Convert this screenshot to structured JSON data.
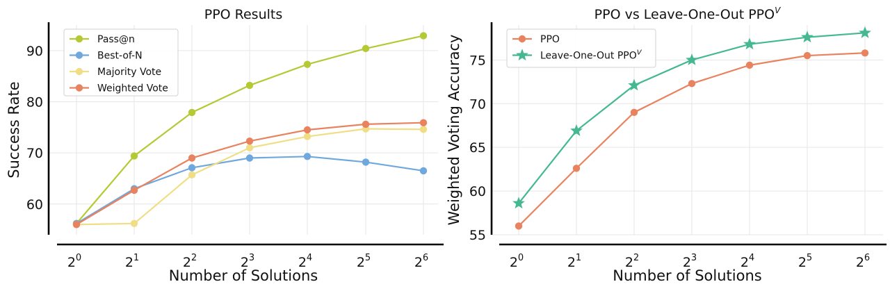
{
  "chart_data": [
    {
      "type": "line",
      "title": "PPO Results",
      "xlabel": "Number of Solutions",
      "ylabel": "Success Rate",
      "categories": [
        {
          "base": "2",
          "exp": "0"
        },
        {
          "base": "2",
          "exp": "1"
        },
        {
          "base": "2",
          "exp": "2"
        },
        {
          "base": "2",
          "exp": "3"
        },
        {
          "base": "2",
          "exp": "4"
        },
        {
          "base": "2",
          "exp": "5"
        },
        {
          "base": "2",
          "exp": "6"
        }
      ],
      "ylim": [
        54,
        95
      ],
      "yticks": [
        60,
        70,
        80,
        90
      ],
      "grid": true,
      "legend": "top-left",
      "series": [
        {
          "name": "Pass@n",
          "color": "#b5c935",
          "marker": "circle",
          "values": [
            56.2,
            69.4,
            77.9,
            83.2,
            87.3,
            90.4,
            92.9
          ]
        },
        {
          "name": "Best-of-N",
          "color": "#6fa8dc",
          "marker": "circle",
          "values": [
            56.2,
            63.0,
            67.1,
            69.0,
            69.3,
            68.2,
            66.5
          ]
        },
        {
          "name": "Majority Vote",
          "color": "#f0de87",
          "marker": "circle",
          "values": [
            56.0,
            56.2,
            65.7,
            71.0,
            73.2,
            74.7,
            74.6
          ]
        },
        {
          "name": "Weighted Vote",
          "color": "#e8825f",
          "marker": "circle",
          "values": [
            56.0,
            62.7,
            69.0,
            72.3,
            74.5,
            75.6,
            75.9
          ]
        }
      ]
    },
    {
      "type": "line",
      "title": "PPO vs Leave-One-Out PPO",
      "title_sup": "V",
      "xlabel": "Number of Solutions",
      "ylabel": "Weighted Voting Accuracy",
      "categories": [
        {
          "base": "2",
          "exp": "0"
        },
        {
          "base": "2",
          "exp": "1"
        },
        {
          "base": "2",
          "exp": "2"
        },
        {
          "base": "2",
          "exp": "3"
        },
        {
          "base": "2",
          "exp": "4"
        },
        {
          "base": "2",
          "exp": "5"
        },
        {
          "base": "2",
          "exp": "6"
        }
      ],
      "ylim": [
        55,
        79
      ],
      "yticks": [
        55,
        60,
        65,
        70,
        75
      ],
      "grid": true,
      "legend": "top-left",
      "series": [
        {
          "name": "PPO",
          "name_sup": "",
          "color": "#e8825f",
          "marker": "circle",
          "values": [
            56.0,
            62.6,
            69.0,
            72.3,
            74.4,
            75.5,
            75.8
          ]
        },
        {
          "name": "Leave-One-Out PPO",
          "name_sup": "V",
          "color": "#45b890",
          "marker": "star",
          "values": [
            58.6,
            66.9,
            72.1,
            75.0,
            76.8,
            77.6,
            78.1
          ]
        }
      ]
    }
  ]
}
